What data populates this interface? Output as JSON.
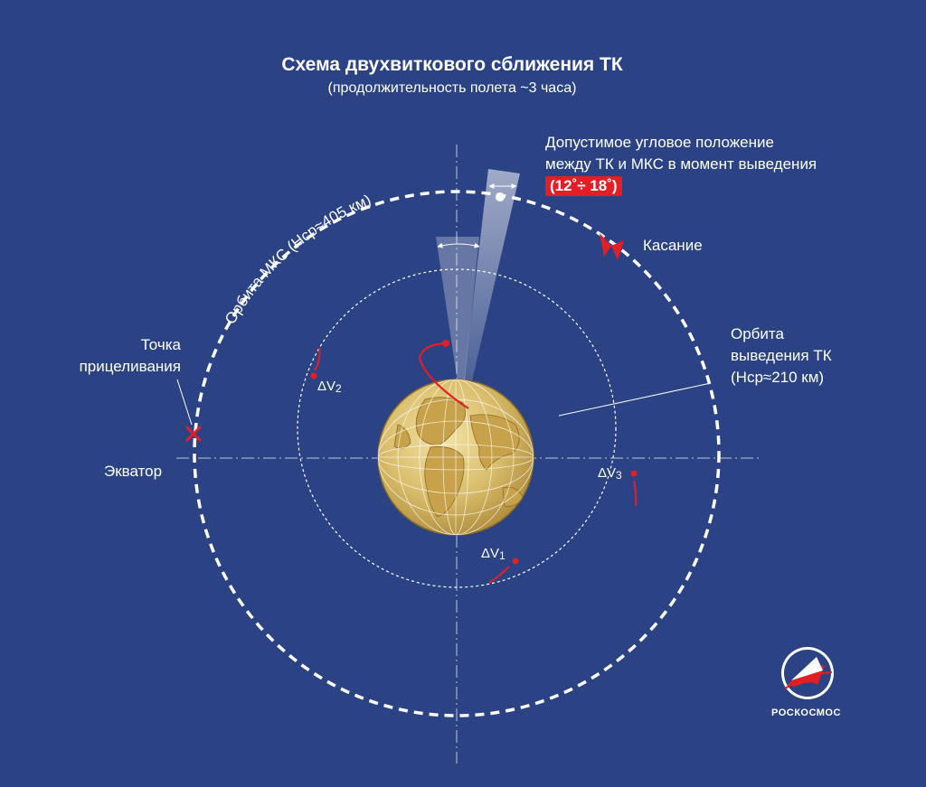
{
  "title": "Схема двухвиткового сближения ТК",
  "subtitle": "(продолжительность полета ~3 часа)",
  "labels": {
    "angle_line1": "Допустимое угловое положение",
    "angle_line2": "между ТК и МКС  в момент выведения",
    "angle_range": "(12˚÷ 18˚)",
    "contact": "Касание",
    "orbit_tk_line1": "Орбита",
    "orbit_tk_line2": "выведения ТК",
    "orbit_tk_line3": "(Hср≈210 км)",
    "iss_orbit": "Орбита МКС (Hср≈405 км)",
    "aim_line1": "Точка",
    "aim_line2": "прицеливания",
    "equator": "Экватор",
    "dv_symbol": "ΔV",
    "dv1_index": "1",
    "dv2_index": "2",
    "dv3_index": "3"
  },
  "brand": {
    "name": "РОСКОСМОС"
  },
  "colors": {
    "background": "#2b4384",
    "accent_red": "#e31e24",
    "orbit_white": "#ffffff",
    "globe_gold": "#c9a445"
  }
}
